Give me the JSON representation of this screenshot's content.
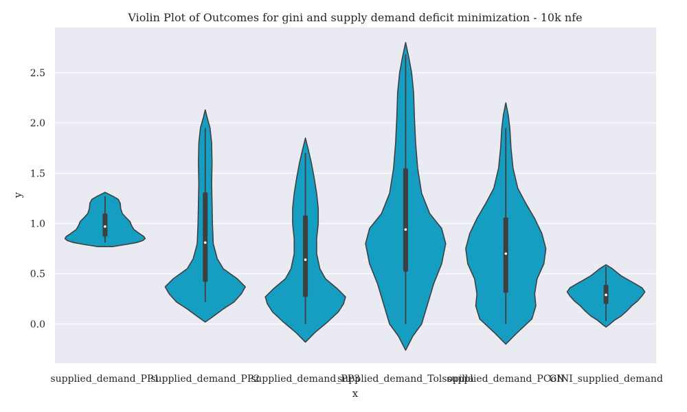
{
  "chart_data": {
    "type": "violin",
    "title": "Violin Plot of Outcomes for gini and supply demand deficit minimization - 10k nfe",
    "xlabel": "x",
    "ylabel": "y",
    "ylim": [
      -0.39,
      2.95
    ],
    "yticks": [
      0.0,
      0.5,
      1.0,
      1.5,
      2.0,
      2.5
    ],
    "ytick_labels": [
      "0.0",
      "0.5",
      "1.0",
      "1.5",
      "2.0",
      "2.5"
    ],
    "grid": true,
    "colors": {
      "violin": "#169DC2",
      "edge": "#3F3F3F",
      "background": "#EAEAF2",
      "grid": "#FFFFFF"
    },
    "categories": [
      "supplied_demand_PP1",
      "supplied_demand_PP2",
      "supplied_demand_PP3",
      "supplied_demand_Tolsopilla",
      "supplied_demand_PCoN",
      "GINI_supplied_demand"
    ],
    "violins": [
      {
        "name": "supplied_demand_PP1",
        "min": 0.77,
        "q1": 0.87,
        "median": 0.97,
        "q3": 1.1,
        "max": 1.31,
        "whisker_low": 0.81,
        "whisker_high": 1.27,
        "profile": [
          [
            0.77,
            0.18
          ],
          [
            0.79,
            0.5
          ],
          [
            0.81,
            0.78
          ],
          [
            0.83,
            0.94
          ],
          [
            0.85,
            1.0
          ],
          [
            0.87,
            0.97
          ],
          [
            0.9,
            0.86
          ],
          [
            0.94,
            0.72
          ],
          [
            0.98,
            0.66
          ],
          [
            1.02,
            0.62
          ],
          [
            1.06,
            0.52
          ],
          [
            1.1,
            0.43
          ],
          [
            1.15,
            0.39
          ],
          [
            1.2,
            0.38
          ],
          [
            1.24,
            0.33
          ],
          [
            1.27,
            0.2
          ],
          [
            1.31,
            0.0
          ]
        ]
      },
      {
        "name": "supplied_demand_PP2",
        "min": 0.02,
        "q1": 0.42,
        "median": 0.81,
        "q3": 1.31,
        "max": 2.13,
        "whisker_low": 0.22,
        "whisker_high": 1.95,
        "profile": [
          [
            0.02,
            0.0
          ],
          [
            0.07,
            0.18
          ],
          [
            0.15,
            0.45
          ],
          [
            0.22,
            0.72
          ],
          [
            0.3,
            0.9
          ],
          [
            0.37,
            1.0
          ],
          [
            0.45,
            0.8
          ],
          [
            0.55,
            0.45
          ],
          [
            0.65,
            0.3
          ],
          [
            0.8,
            0.2
          ],
          [
            1.0,
            0.18
          ],
          [
            1.2,
            0.17
          ],
          [
            1.4,
            0.16
          ],
          [
            1.6,
            0.17
          ],
          [
            1.8,
            0.16
          ],
          [
            1.95,
            0.12
          ],
          [
            2.05,
            0.05
          ],
          [
            2.13,
            0.0
          ]
        ]
      },
      {
        "name": "supplied_demand_PP3",
        "min": -0.18,
        "q1": 0.27,
        "median": 0.64,
        "q3": 1.08,
        "max": 1.85,
        "whisker_low": 0.0,
        "whisker_high": 1.7,
        "profile": [
          [
            -0.18,
            0.0
          ],
          [
            -0.08,
            0.25
          ],
          [
            0.02,
            0.55
          ],
          [
            0.12,
            0.82
          ],
          [
            0.2,
            0.95
          ],
          [
            0.27,
            1.0
          ],
          [
            0.35,
            0.8
          ],
          [
            0.45,
            0.5
          ],
          [
            0.55,
            0.36
          ],
          [
            0.7,
            0.28
          ],
          [
            0.85,
            0.28
          ],
          [
            1.0,
            0.32
          ],
          [
            1.15,
            0.32
          ],
          [
            1.3,
            0.28
          ],
          [
            1.45,
            0.22
          ],
          [
            1.6,
            0.15
          ],
          [
            1.72,
            0.08
          ],
          [
            1.85,
            0.0
          ]
        ]
      },
      {
        "name": "supplied_demand_Tolsopilla",
        "min": -0.26,
        "q1": 0.52,
        "median": 0.94,
        "q3": 1.55,
        "max": 2.8,
        "whisker_low": 0.0,
        "whisker_high": 2.68,
        "profile": [
          [
            -0.26,
            0.0
          ],
          [
            -0.12,
            0.18
          ],
          [
            0.0,
            0.4
          ],
          [
            0.2,
            0.55
          ],
          [
            0.4,
            0.7
          ],
          [
            0.6,
            0.9
          ],
          [
            0.8,
            1.0
          ],
          [
            0.95,
            0.9
          ],
          [
            1.1,
            0.6
          ],
          [
            1.3,
            0.4
          ],
          [
            1.55,
            0.3
          ],
          [
            1.8,
            0.25
          ],
          [
            2.05,
            0.22
          ],
          [
            2.3,
            0.2
          ],
          [
            2.5,
            0.15
          ],
          [
            2.65,
            0.08
          ],
          [
            2.8,
            0.0
          ]
        ]
      },
      {
        "name": "supplied_demand_PCoN",
        "min": -0.2,
        "q1": 0.31,
        "median": 0.7,
        "q3": 1.06,
        "max": 2.2,
        "whisker_low": 0.0,
        "whisker_high": 1.95,
        "profile": [
          [
            -0.2,
            0.0
          ],
          [
            -0.08,
            0.3
          ],
          [
            0.05,
            0.65
          ],
          [
            0.18,
            0.75
          ],
          [
            0.3,
            0.72
          ],
          [
            0.45,
            0.78
          ],
          [
            0.6,
            0.95
          ],
          [
            0.75,
            1.0
          ],
          [
            0.9,
            0.9
          ],
          [
            1.05,
            0.72
          ],
          [
            1.2,
            0.5
          ],
          [
            1.35,
            0.3
          ],
          [
            1.55,
            0.18
          ],
          [
            1.75,
            0.13
          ],
          [
            1.95,
            0.1
          ],
          [
            2.08,
            0.06
          ],
          [
            2.2,
            0.0
          ]
        ]
      },
      {
        "name": "GINI_supplied_demand",
        "min": -0.03,
        "q1": 0.2,
        "median": 0.29,
        "q3": 0.39,
        "max": 0.59,
        "whisker_low": 0.03,
        "whisker_high": 0.57,
        "profile": [
          [
            -0.03,
            0.0
          ],
          [
            0.0,
            0.1
          ],
          [
            0.04,
            0.22
          ],
          [
            0.08,
            0.38
          ],
          [
            0.13,
            0.52
          ],
          [
            0.18,
            0.64
          ],
          [
            0.23,
            0.79
          ],
          [
            0.28,
            0.9
          ],
          [
            0.32,
            0.97
          ],
          [
            0.36,
            0.9
          ],
          [
            0.4,
            0.73
          ],
          [
            0.44,
            0.55
          ],
          [
            0.48,
            0.38
          ],
          [
            0.52,
            0.25
          ],
          [
            0.55,
            0.16
          ],
          [
            0.57,
            0.08
          ],
          [
            0.59,
            0.0
          ]
        ]
      }
    ]
  }
}
